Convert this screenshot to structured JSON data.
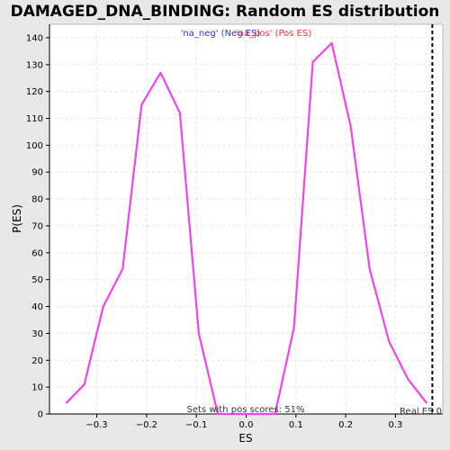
{
  "chart_data": {
    "type": "line",
    "title": "DAMAGED_DNA_BINDING: Random ES distribution",
    "xlabel": "ES",
    "ylabel": "P(ES)",
    "xlim": [
      -0.395,
      0.395
    ],
    "ylim": [
      0,
      145
    ],
    "xticks": [
      -0.3,
      -0.2,
      -0.1,
      0.0,
      0.1,
      0.2,
      0.3
    ],
    "xtick_labels": [
      "−0.3",
      "−0.2",
      "−0.1",
      "0.0",
      "0.1",
      "0.2",
      "0.3"
    ],
    "yticks": [
      0,
      10,
      20,
      30,
      40,
      50,
      60,
      70,
      80,
      90,
      100,
      110,
      120,
      130,
      140
    ],
    "ytick_labels": [
      "0",
      "10",
      "20",
      "30",
      "40",
      "50",
      "60",
      "70",
      "80",
      "90",
      "100",
      "110",
      "120",
      "130",
      "140"
    ],
    "grid": true,
    "legend": {
      "placement": "top-center",
      "entries": [
        {
          "label": "'na_neg' (Neg ES)",
          "color": "#3333cc"
        },
        {
          "label": "'na_pos' (Pos ES)",
          "color": "#ff3333"
        }
      ]
    },
    "series": [
      {
        "color": "#ee44ee",
        "x": [
          -0.362,
          -0.325,
          -0.287,
          -0.248,
          -0.21,
          -0.172,
          -0.133,
          -0.095,
          -0.057,
          0.058,
          0.096,
          0.134,
          0.172,
          0.21,
          0.248,
          0.287,
          0.325,
          0.363
        ],
        "y": [
          4,
          11,
          40,
          54,
          115,
          127,
          112,
          30,
          0,
          0,
          32,
          131,
          138,
          107,
          54,
          27,
          13,
          4
        ]
      }
    ],
    "real_es": {
      "x": 0.374,
      "label": "Real ES 0"
    },
    "annotation": "Sets with pos scores: 51%"
  }
}
